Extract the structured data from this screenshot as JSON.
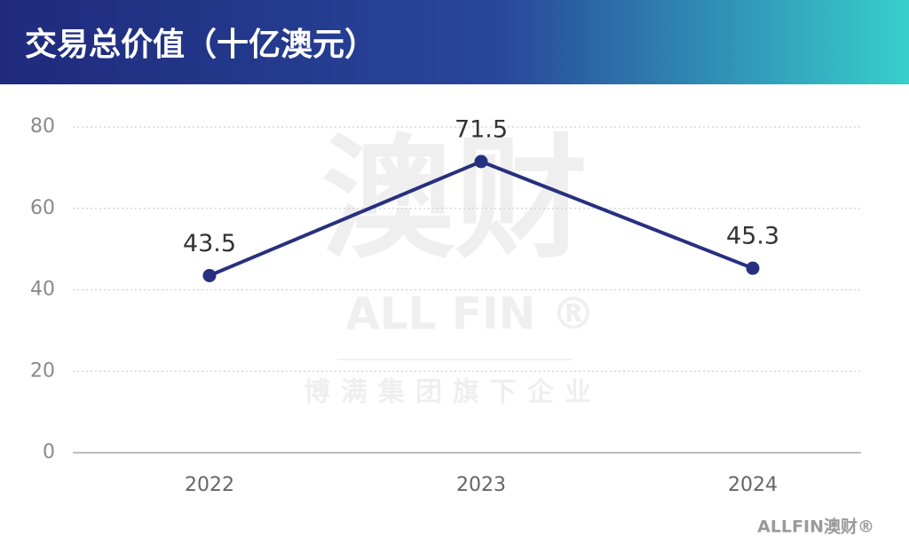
{
  "chart_data": {
    "type": "line",
    "title": "交易总价值（十亿澳元）",
    "categories": [
      "2022",
      "2023",
      "2024"
    ],
    "series": [
      {
        "values": [
          43.5,
          71.5,
          45.3
        ],
        "color": "#27307f"
      }
    ],
    "ylim": [
      0,
      80
    ],
    "yticks": [
      0,
      20,
      40,
      60,
      80
    ],
    "grid": true,
    "watermark": "澳财",
    "watermark_brand": "ALL FIN ®",
    "watermark_tagline": "博满集团旗下企业",
    "logo": "ALLFIN澳财®"
  }
}
